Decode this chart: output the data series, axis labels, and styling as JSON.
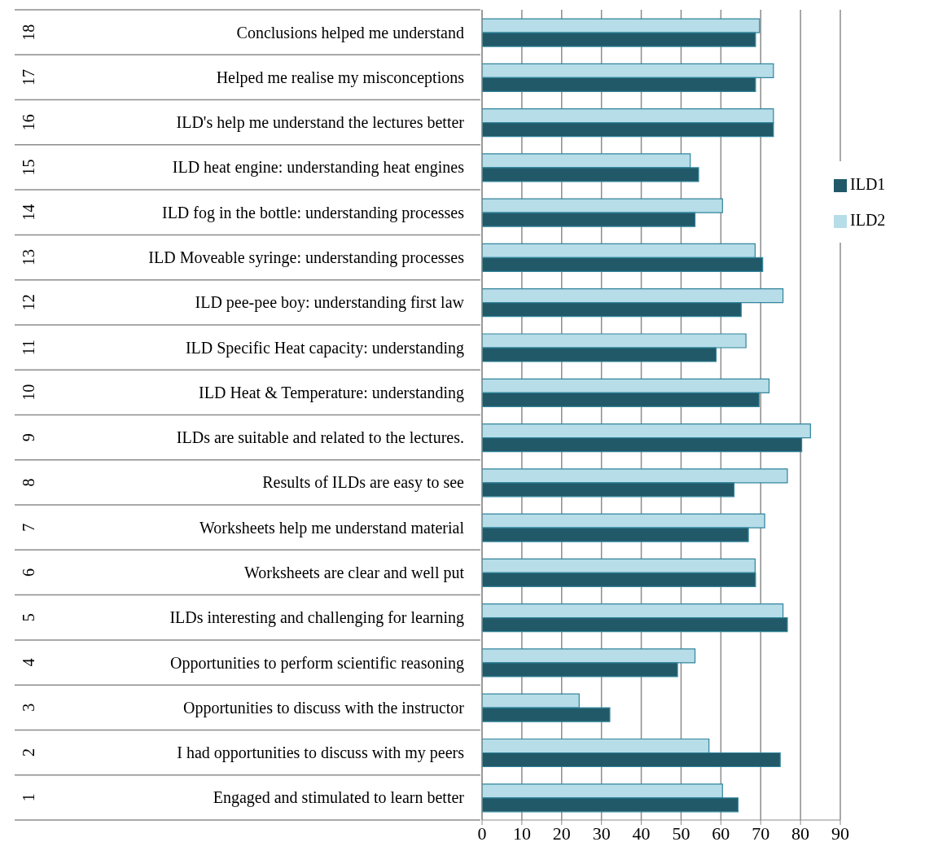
{
  "chart_data": {
    "type": "bar",
    "orientation": "horizontal",
    "categories": [
      "Conclusions helped me understand",
      "Helped me realise my misconceptions",
      "ILD's help me understand the lectures better",
      "ILD heat engine: understanding heat engines",
      "ILD fog in the bottle: understanding processes",
      "ILD Moveable syringe: understanding processes",
      "ILD pee-pee boy: understanding first law",
      "ILD Specific Heat capacity: understanding",
      "ILD Heat & Temperature: understanding",
      "ILDs are suitable and related to the lectures.",
      "Results of ILDs are easy to see",
      "Worksheets help me understand material",
      "Worksheets are clear and well put",
      "ILDs interesting and challenging for learning",
      "Opportunities to perform scientific reasoning",
      "Opportunities to discuss with the instructor",
      "I had opportunities to discuss with my peers",
      "Engaged and stimulated to learn better"
    ],
    "y2_categories": [
      "18",
      "17",
      "16",
      "15",
      "14",
      "13",
      "12",
      "11",
      "10",
      "9",
      "8",
      "7",
      "6",
      "5",
      "4",
      "3",
      "2",
      "1"
    ],
    "series": [
      {
        "name": "ILD2",
        "color": "#b7dde8",
        "values": [
          69.7,
          73.2,
          73.2,
          52.3,
          60.4,
          68.6,
          75.6,
          66.3,
          72.1,
          82.5,
          76.7,
          71.0,
          68.6,
          75.6,
          53.5,
          24.4,
          57.0,
          60.4
        ]
      },
      {
        "name": "ILD1",
        "color": "#215968",
        "values": [
          68.7,
          68.7,
          73.2,
          54.4,
          53.5,
          70.5,
          65.1,
          58.8,
          69.6,
          80.3,
          63.3,
          66.9,
          68.7,
          76.7,
          49.1,
          32.1,
          74.9,
          64.3
        ]
      }
    ],
    "xlim": [
      0,
      90
    ],
    "xticks": [
      0,
      10,
      20,
      30,
      40,
      50,
      60,
      70,
      80,
      90
    ],
    "grid": "x",
    "legend": "right"
  }
}
